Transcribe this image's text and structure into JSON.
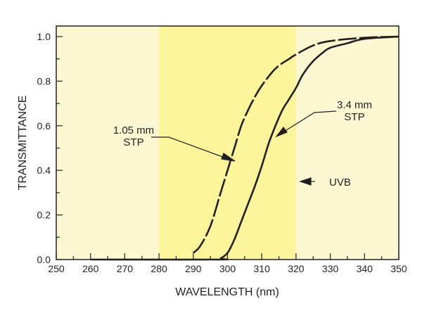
{
  "chart_data": {
    "type": "line",
    "xlabel": "WAVELENGTH (nm)",
    "ylabel": "TRANSMITTANCE",
    "xlim": [
      250,
      350
    ],
    "ylim": [
      0,
      1.0
    ],
    "xticks": [
      "250",
      "260",
      "270",
      "280",
      "290",
      "300",
      "310",
      "320",
      "330",
      "340",
      "350"
    ],
    "yticks": [
      "0.0",
      "0.2",
      "0.4",
      "0.6",
      "0.8",
      "1.0"
    ],
    "grid": false,
    "bands": [
      {
        "from": 250,
        "to": 280,
        "color": "#fdf8d2"
      },
      {
        "from": 280,
        "to": 320,
        "color": "#fdf59c"
      },
      {
        "from": 320,
        "to": 350,
        "color": "#fdf8d2"
      }
    ],
    "series": [
      {
        "name": "1.05 mm STP",
        "style": "dashed",
        "x": [
          290,
          292,
          295,
          298,
          300,
          302,
          304,
          306,
          308,
          310,
          313,
          315,
          318,
          320,
          325,
          330,
          340,
          350
        ],
        "y": [
          0.03,
          0.06,
          0.15,
          0.3,
          0.4,
          0.5,
          0.6,
          0.67,
          0.73,
          0.78,
          0.84,
          0.87,
          0.9,
          0.92,
          0.96,
          0.98,
          0.995,
          1.0
        ]
      },
      {
        "name": "3.4 mm STP",
        "style": "solid",
        "x": [
          260,
          297,
          298,
          300,
          302,
          304,
          306,
          308,
          310,
          312,
          314,
          316,
          318,
          320,
          322,
          325,
          328,
          330,
          335,
          340,
          350
        ],
        "y": [
          0.0,
          0.0,
          0.005,
          0.03,
          0.09,
          0.17,
          0.25,
          0.33,
          0.42,
          0.52,
          0.6,
          0.67,
          0.72,
          0.77,
          0.83,
          0.89,
          0.93,
          0.95,
          0.97,
          0.99,
          1.0
        ]
      }
    ],
    "annotations": {
      "label_105_line1": "1.05 mm",
      "label_105_line2": "STP",
      "label_34_line1": "3.4 mm",
      "label_34_line2": "STP",
      "uvb": "UVB"
    },
    "colors": {
      "line": "#231f20"
    }
  }
}
